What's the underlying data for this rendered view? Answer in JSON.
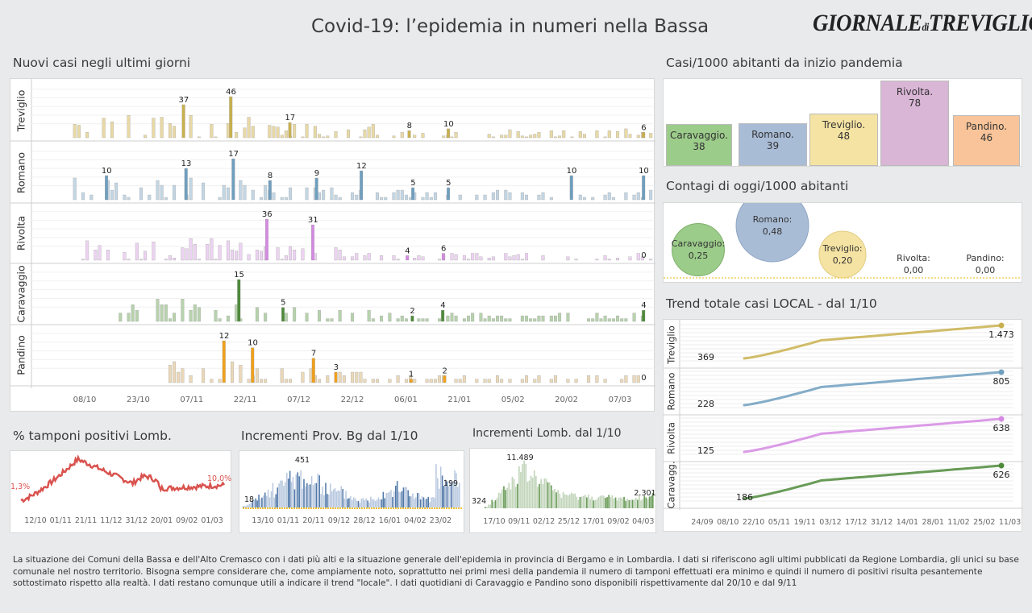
{
  "header": {
    "title": "Covid-19: l’epidemia  in numeri nella Bassa",
    "logo_main": "GIORNALE",
    "logo_di": "di",
    "logo_city": "TREVIGLIO"
  },
  "colors": {
    "treviglio": "#c9b04f",
    "treviglio_light": "#e8d9a5",
    "romano": "#6f9fbf",
    "romano_light": "#c3d6e4",
    "rivolta": "#d58ae3",
    "rivolta_light": "#ecd3f1",
    "caravaggio": "#4e8a3a",
    "caravaggio_light": "#b7d2ad",
    "pandino": "#f0a01c",
    "pandino_light": "#ead8b8",
    "red": "#d9534f"
  },
  "sections": {
    "nuovi_casi": "Nuovi casi negli ultimi   giorni",
    "casi_1000": "Casi/1000 abitanti da inizio pandemia",
    "contagi_oggi": "Contagi di oggi/1000 abitanti",
    "trend": "Trend totale casi  LOCAL - dal 1/10",
    "tamponi": "% tamponi positivi Lomb.",
    "incr_bg": "Incrementi Prov. Bg dal 1/10",
    "incr_lomb": "Incrementi Lomb. dal 1/10"
  },
  "chart_data": [
    {
      "id": "nuovi_casi",
      "type": "bar",
      "x_ticks": [
        "08/10",
        "23/10",
        "07/11",
        "22/11",
        "07/12",
        "22/12",
        "06/01",
        "21/01",
        "05/02",
        "20/02",
        "07/03"
      ],
      "rows": [
        {
          "name": "Treviglio",
          "key": "treviglio",
          "labels": [
            {
              "v": "37",
              "at": 0.245
            },
            {
              "v": "46",
              "at": 0.321
            },
            {
              "v": "17",
              "at": 0.416
            },
            {
              "v": "8",
              "at": 0.608
            },
            {
              "v": "10",
              "at": 0.671
            },
            {
              "v": "6",
              "at": 0.985
            }
          ]
        },
        {
          "name": "Romano",
          "key": "romano",
          "labels": [
            {
              "v": "10",
              "at": 0.121
            },
            {
              "v": "13",
              "at": 0.249
            },
            {
              "v": "17",
              "at": 0.325
            },
            {
              "v": "8",
              "at": 0.384
            },
            {
              "v": "9",
              "at": 0.459
            },
            {
              "v": "12",
              "at": 0.531
            },
            {
              "v": "5",
              "at": 0.614
            },
            {
              "v": "5",
              "at": 0.671
            },
            {
              "v": "10",
              "at": 0.869
            },
            {
              "v": "10",
              "at": 0.985
            }
          ]
        },
        {
          "name": "Rivolta",
          "key": "rivolta",
          "labels": [
            {
              "v": "36",
              "at": 0.379
            },
            {
              "v": "31",
              "at": 0.453
            },
            {
              "v": "4",
              "at": 0.605
            },
            {
              "v": "6",
              "at": 0.663
            },
            {
              "v": "0",
              "at": 0.985
            }
          ]
        },
        {
          "name": "Caravaggio",
          "key": "caravaggio",
          "labels": [
            {
              "v": "15",
              "at": 0.334
            },
            {
              "v": "5",
              "at": 0.405
            },
            {
              "v": "2",
              "at": 0.613
            },
            {
              "v": "4",
              "at": 0.662
            },
            {
              "v": "4",
              "at": 0.985
            }
          ]
        },
        {
          "name": "Pandino",
          "key": "pandino",
          "labels": [
            {
              "v": "12",
              "at": 0.31
            },
            {
              "v": "10",
              "at": 0.356
            },
            {
              "v": "7",
              "at": 0.454
            },
            {
              "v": "3",
              "at": 0.49
            },
            {
              "v": "1",
              "at": 0.611
            },
            {
              "v": "2",
              "at": 0.665
            },
            {
              "v": "0",
              "at": 0.985
            }
          ]
        }
      ]
    },
    {
      "id": "casi_1000",
      "type": "bar",
      "categories": [
        "Caravaggio.",
        "Romano.",
        "Treviglio.",
        "Rivolta.",
        "Pandino."
      ],
      "values": [
        38,
        39,
        48,
        78,
        46
      ],
      "value_labels": [
        "38",
        "39",
        "48",
        "78",
        "46"
      ]
    },
    {
      "id": "contagi_oggi",
      "type": "scatter",
      "categories": [
        "Caravaggio:",
        "Romano:",
        "Treviglio:",
        "Rivolta:",
        "Pandino:"
      ],
      "values": [
        0.25,
        0.48,
        0.2,
        0.0,
        0.0
      ],
      "value_labels": [
        "0,25",
        "0,48",
        "0,20",
        "0,00",
        "0,00"
      ]
    },
    {
      "id": "trend",
      "type": "line",
      "x_ticks": [
        "24/09",
        "08/10",
        "22/10",
        "05/11",
        "19/11",
        "03/12",
        "17/12",
        "31/12",
        "14/01",
        "28/01",
        "11/02",
        "25/02",
        "11/03"
      ],
      "series": [
        {
          "name": "Treviglio",
          "key": "treviglio",
          "start": 369,
          "end": 1473,
          "start_label": "369",
          "end_label": "1.473"
        },
        {
          "name": "Romano",
          "key": "romano",
          "start": 228,
          "end": 805,
          "start_label": "228",
          "end_label": "805"
        },
        {
          "name": "Rivolta",
          "key": "rivolta",
          "start": 125,
          "end": 638,
          "start_label": "125",
          "end_label": "638"
        },
        {
          "name": "Caravagg.",
          "key": "caravaggio",
          "start": 186,
          "end": 626,
          "start_label": "186",
          "end_label": "626"
        }
      ]
    },
    {
      "id": "tamponi",
      "type": "line",
      "x_ticks": [
        "12/10",
        "01/11",
        "21/11",
        "11/12",
        "31/12",
        "20/01",
        "09/02",
        "01/03"
      ],
      "start_label": "1,3%",
      "end_label": "10,0%",
      "y_start": 1.3,
      "y_end": 10.0,
      "y_peak": 25
    },
    {
      "id": "incr_bg",
      "type": "bar",
      "x_ticks": [
        "13/10",
        "01/11",
        "20/11",
        "09/12",
        "28/12",
        "16/01",
        "04/02",
        "23/02"
      ],
      "labels": {
        "start": "18",
        "peak": "451",
        "end": "199"
      },
      "start": 18,
      "peak": 451,
      "end": 199
    },
    {
      "id": "incr_lomb",
      "type": "bar",
      "x_ticks": [
        "17/10",
        "09/11",
        "02/12",
        "25/12",
        "17/01",
        "09/02",
        "04/03"
      ],
      "labels": {
        "start": "324",
        "peak": "11.489",
        "end": "2.301"
      },
      "start": 324,
      "peak": 11489,
      "end": 2301
    }
  ],
  "footer": {
    "text": "La situazione dei Comuni della Bassa e dell'Alto Cremasco con i dati più alti e la situazione generale dell'epidemia in provincia di Bergamo e in Lombardia.  I dati si riferiscono agli ultimi pubblicati da Regione Lombardia, gli unici su base comunale nel  nostro territorio.  Bisogna sempre considerare che, come ampiamente noto, soprattutto nei primi mesi della pandemia il numero di tamponi effettuati era minimo e quindi il numero di positivi risulta pesantemente sottostimato rispetto alla realtà. I dati restano comunque utili a indicare il trend \"locale\".  I dati quotidiani di Caravaggio e Pandino sono disponibili rispettivamente dal 20/10 e dal 9/11"
  }
}
